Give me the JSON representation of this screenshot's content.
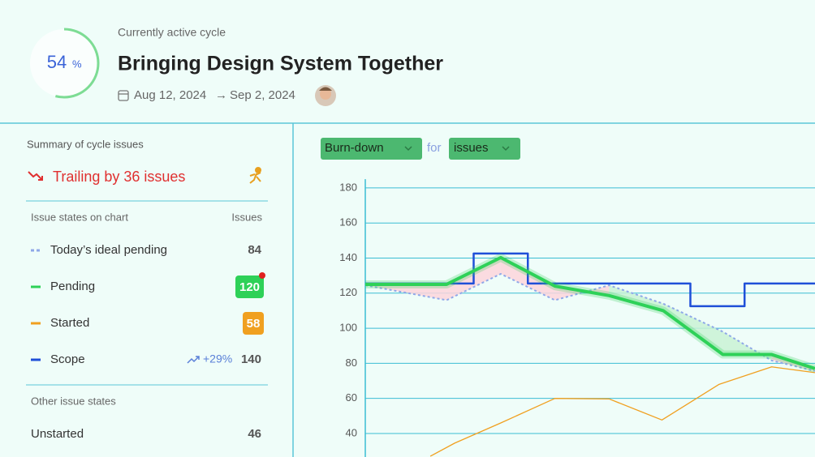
{
  "header": {
    "progress": 54,
    "progress_unit": "%",
    "subtitle": "Currently active cycle",
    "title": "Bringing Design System Together",
    "start_date": "Aug 12, 2024",
    "date_separator": "→",
    "end_date": "Sep 2, 2024"
  },
  "summary": {
    "heading": "Summary of cycle issues",
    "status": "Trailing by 36 issues",
    "column_state": "Issue states on chart",
    "column_count": "Issues",
    "other_heading": "Other issue states",
    "other_rows": [
      {
        "label": "Unstarted",
        "count": 46
      }
    ]
  },
  "chart_data": {
    "type": "line",
    "dropdown_view": "Burn-down",
    "dropdown_joiner": "for",
    "dropdown_unit": "issues",
    "ylim": [
      27,
      185
    ],
    "yticks": [
      40,
      60,
      80,
      100,
      120,
      140,
      160,
      180
    ],
    "xlim": [
      0,
      16.6
    ],
    "grid": true,
    "series": [
      {
        "name": "Today’s ideal pending",
        "color": "#8fa8e8",
        "dashed": true,
        "count": 84,
        "x": [
          0,
          3,
          5,
          7,
          9,
          11,
          13.2,
          15,
          16.6
        ],
        "values": [
          124.5,
          116,
          131,
          116,
          124.5,
          114,
          98,
          81.6,
          75.6
        ]
      },
      {
        "name": "Pending",
        "color": "#2ed158",
        "count": 120,
        "count_badge": true,
        "x": [
          0,
          3,
          5,
          7,
          9,
          11,
          13.2,
          15,
          16.6
        ],
        "values": [
          125,
          125,
          140.3,
          124,
          118.6,
          110,
          85,
          85,
          77
        ]
      },
      {
        "name": "Started",
        "color": "#f0a020",
        "count": 58,
        "count_badge": true,
        "x": [
          2.4,
          3.3,
          5,
          7,
          9,
          10.95,
          13.06,
          15,
          16.6
        ],
        "values": [
          27,
          34.5,
          46,
          60,
          59.7,
          47.7,
          68,
          78,
          74.7
        ]
      },
      {
        "name": "Scope",
        "color": "#1f4fd8",
        "count": 140,
        "change": "+29%",
        "x": [
          0,
          4,
          4,
          6,
          6,
          12,
          12,
          14,
          14,
          16.6
        ],
        "values": [
          125.5,
          125.5,
          142.6,
          142.6,
          125.5,
          125.5,
          112.6,
          112.6,
          125.5,
          125.5
        ]
      }
    ]
  }
}
